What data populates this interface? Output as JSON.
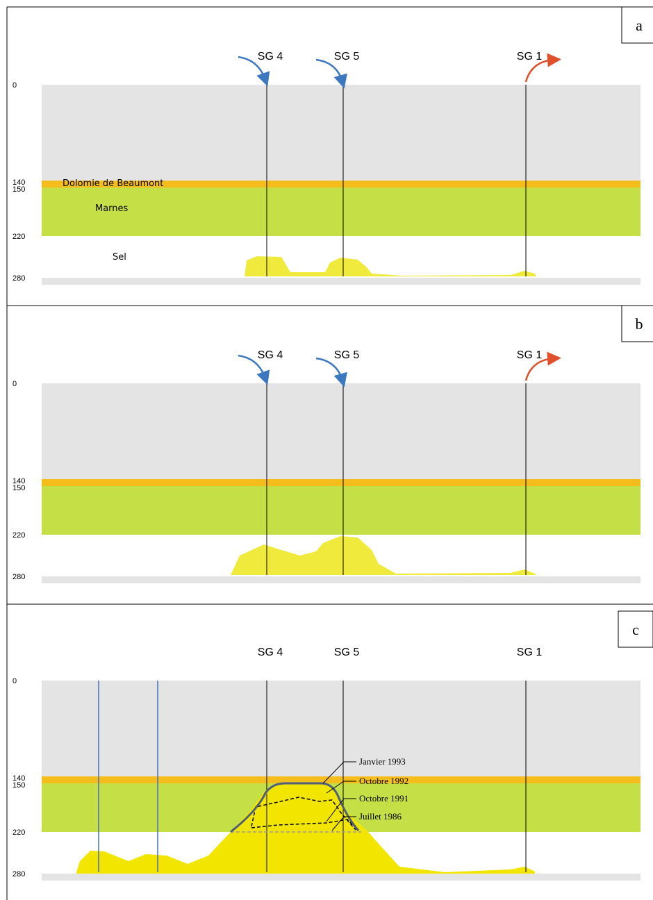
{
  "panels": [
    {
      "label": "a",
      "wells": [
        "SG 4",
        "SG 5",
        "SG 1"
      ],
      "depths": [
        "0",
        "140",
        "150",
        "220",
        "280"
      ],
      "layers": [
        "Dolomie de Beaumont",
        "Marnes",
        "Sel"
      ]
    },
    {
      "label": "b",
      "wells": [
        "SG 4",
        "SG 5",
        "SG 1"
      ],
      "depths": [
        "0",
        "140",
        "150",
        "220",
        "280"
      ]
    },
    {
      "label": "c",
      "wells": [
        "SG 4",
        "SG 5",
        "SG 1"
      ],
      "depths": [
        "0",
        "140",
        "150",
        "220",
        "280"
      ],
      "curves": [
        "Janvier 1993",
        "Octobre 1992",
        "Octobre 1991",
        "Juillet 1986"
      ]
    }
  ]
}
